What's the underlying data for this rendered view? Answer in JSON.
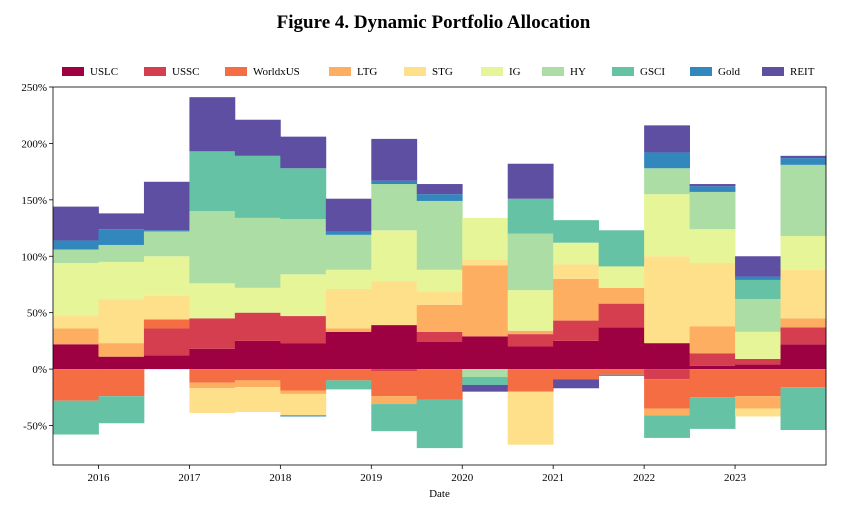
{
  "chart_data": {
    "type": "area",
    "title": "Figure 4. Dynamic Portfolio Allocation",
    "xlabel": "Date",
    "ylabel": "",
    "ylim": [
      -0.85,
      2.5
    ],
    "xlim": [
      2015.5,
      2024.0
    ],
    "y_format": "percent",
    "yticks": [
      -0.5,
      0,
      0.5,
      1.0,
      1.5,
      2.0,
      2.5
    ],
    "ytick_labels": [
      "-50%",
      "0%",
      "50%",
      "100%",
      "150%",
      "200%",
      "250%"
    ],
    "xticks": [
      2016,
      2017,
      2018,
      2019,
      2020,
      2021,
      2022,
      2023
    ],
    "xtick_labels": [
      "2016",
      "2017",
      "2018",
      "2019",
      "2020",
      "2021",
      "2022",
      "2023"
    ],
    "legend_position": "top",
    "grid": false,
    "series": [
      {
        "name": "USLC",
        "color": "#9e0142"
      },
      {
        "name": "USSC",
        "color": "#d53e4f"
      },
      {
        "name": "WorldxUS",
        "color": "#f46d43"
      },
      {
        "name": "LTG",
        "color": "#fdae61"
      },
      {
        "name": "STG",
        "color": "#fee08b"
      },
      {
        "name": "IG",
        "color": "#e6f598"
      },
      {
        "name": "HY",
        "color": "#abdda4"
      },
      {
        "name": "GSCI",
        "color": "#66c2a5"
      },
      {
        "name": "Gold",
        "color": "#3288bd"
      },
      {
        "name": "REIT",
        "color": "#5e4fa2"
      }
    ],
    "periods": [
      {
        "start": 2015.5,
        "end": 2016.0,
        "weights": {
          "USLC": 0.22,
          "USSC": 0.0,
          "WorldxUS": -0.28,
          "LTG": 0.14,
          "STG": 0.11,
          "IG": 0.47,
          "HY": 0.12,
          "GSCI": -0.3,
          "Gold": 0.08,
          "REIT": 0.3
        }
      },
      {
        "start": 2016.0,
        "end": 2016.5,
        "weights": {
          "USLC": 0.11,
          "USSC": 0.0,
          "WorldxUS": -0.24,
          "LTG": 0.12,
          "STG": 0.39,
          "IG": 0.33,
          "HY": 0.15,
          "GSCI": -0.24,
          "Gold": 0.14,
          "REIT": 0.14
        }
      },
      {
        "start": 2016.5,
        "end": 2017.0,
        "weights": {
          "USLC": 0.12,
          "USSC": 0.24,
          "WorldxUS": 0.08,
          "LTG": 0.0,
          "STG": 0.21,
          "IG": 0.35,
          "HY": 0.22,
          "GSCI": 0.0,
          "Gold": 0.01,
          "REIT": 0.43
        }
      },
      {
        "start": 2017.0,
        "end": 2017.5,
        "weights": {
          "USLC": 0.18,
          "USSC": 0.27,
          "WorldxUS": -0.12,
          "LTG": -0.05,
          "STG": -0.22,
          "IG": 0.31,
          "HY": 0.64,
          "GSCI": 0.53,
          "Gold": 0.0,
          "REIT": 0.48
        }
      },
      {
        "start": 2017.5,
        "end": 2018.0,
        "weights": {
          "USLC": 0.25,
          "USSC": 0.25,
          "WorldxUS": -0.1,
          "LTG": -0.06,
          "STG": -0.22,
          "IG": 0.22,
          "HY": 0.62,
          "GSCI": 0.55,
          "Gold": 0.0,
          "REIT": 0.32
        }
      },
      {
        "start": 2018.0,
        "end": 2018.5,
        "weights": {
          "USLC": 0.23,
          "USSC": 0.24,
          "WorldxUS": -0.19,
          "LTG": -0.03,
          "STG": -0.19,
          "IG": 0.37,
          "HY": 0.49,
          "GSCI": 0.45,
          "Gold": -0.01,
          "REIT": 0.28
        }
      },
      {
        "start": 2018.5,
        "end": 2019.0,
        "weights": {
          "USLC": 0.33,
          "USSC": 0.0,
          "WorldxUS": -0.1,
          "LTG": 0.03,
          "STG": 0.35,
          "IG": 0.17,
          "HY": 0.31,
          "GSCI": -0.08,
          "Gold": 0.03,
          "REIT": 0.29
        }
      },
      {
        "start": 2019.0,
        "end": 2019.5,
        "weights": {
          "USLC": 0.39,
          "USSC": -0.02,
          "WorldxUS": -0.22,
          "LTG": -0.07,
          "STG": 0.39,
          "IG": 0.45,
          "HY": 0.41,
          "GSCI": -0.24,
          "Gold": 0.03,
          "REIT": 0.37
        }
      },
      {
        "start": 2019.5,
        "end": 2020.0,
        "weights": {
          "USLC": 0.24,
          "USSC": 0.09,
          "WorldxUS": -0.27,
          "LTG": 0.24,
          "STG": 0.12,
          "IG": 0.19,
          "HY": 0.61,
          "GSCI": -0.43,
          "Gold": 0.06,
          "REIT": 0.09
        }
      },
      {
        "start": 2020.0,
        "end": 2020.5,
        "weights": {
          "USLC": 0.29,
          "USSC": 0.0,
          "WorldxUS": 0.0,
          "LTG": 0.63,
          "STG": 0.05,
          "IG": 0.37,
          "HY": -0.07,
          "GSCI": -0.07,
          "Gold": 0.0,
          "REIT": -0.06
        }
      },
      {
        "start": 2020.5,
        "end": 2021.0,
        "weights": {
          "USLC": 0.2,
          "USSC": 0.11,
          "WorldxUS": -0.2,
          "LTG": 0.03,
          "STG": -0.47,
          "IG": 0.36,
          "HY": 0.5,
          "GSCI": 0.31,
          "Gold": 0.0,
          "REIT": 0.31
        }
      },
      {
        "start": 2021.0,
        "end": 2021.5,
        "weights": {
          "USLC": 0.25,
          "USSC": 0.18,
          "WorldxUS": -0.09,
          "LTG": 0.37,
          "STG": 0.13,
          "IG": 0.19,
          "HY": 0.0,
          "GSCI": 0.2,
          "Gold": 0.0,
          "REIT": -0.08
        }
      },
      {
        "start": 2021.5,
        "end": 2022.0,
        "weights": {
          "USLC": 0.37,
          "USSC": 0.21,
          "WorldxUS": -0.05,
          "LTG": 0.14,
          "STG": 0.0,
          "IG": 0.19,
          "HY": 0.0,
          "GSCI": 0.32,
          "Gold": -0.01,
          "REIT": 0.0
        }
      },
      {
        "start": 2022.0,
        "end": 2022.5,
        "weights": {
          "USLC": 0.23,
          "USSC": -0.09,
          "WorldxUS": -0.26,
          "LTG": -0.06,
          "STG": 0.77,
          "IG": 0.55,
          "HY": 0.23,
          "GSCI": -0.2,
          "Gold": 0.14,
          "REIT": 0.24
        }
      },
      {
        "start": 2022.5,
        "end": 2023.0,
        "weights": {
          "USLC": 0.03,
          "USSC": 0.11,
          "WorldxUS": -0.25,
          "LTG": 0.24,
          "STG": 0.56,
          "IG": 0.3,
          "HY": 0.33,
          "GSCI": -0.28,
          "Gold": 0.05,
          "REIT": 0.02
        }
      },
      {
        "start": 2023.0,
        "end": 2023.5,
        "weights": {
          "USLC": 0.04,
          "USSC": 0.05,
          "WorldxUS": -0.24,
          "LTG": -0.11,
          "STG": -0.07,
          "IG": 0.24,
          "HY": 0.29,
          "GSCI": 0.17,
          "Gold": 0.03,
          "REIT": 0.18
        }
      },
      {
        "start": 2023.5,
        "end": 2024.0,
        "weights": {
          "USLC": 0.22,
          "USSC": 0.15,
          "WorldxUS": -0.16,
          "LTG": 0.08,
          "STG": 0.43,
          "IG": 0.3,
          "HY": 0.63,
          "GSCI": -0.38,
          "Gold": 0.06,
          "REIT": 0.02
        }
      }
    ]
  }
}
